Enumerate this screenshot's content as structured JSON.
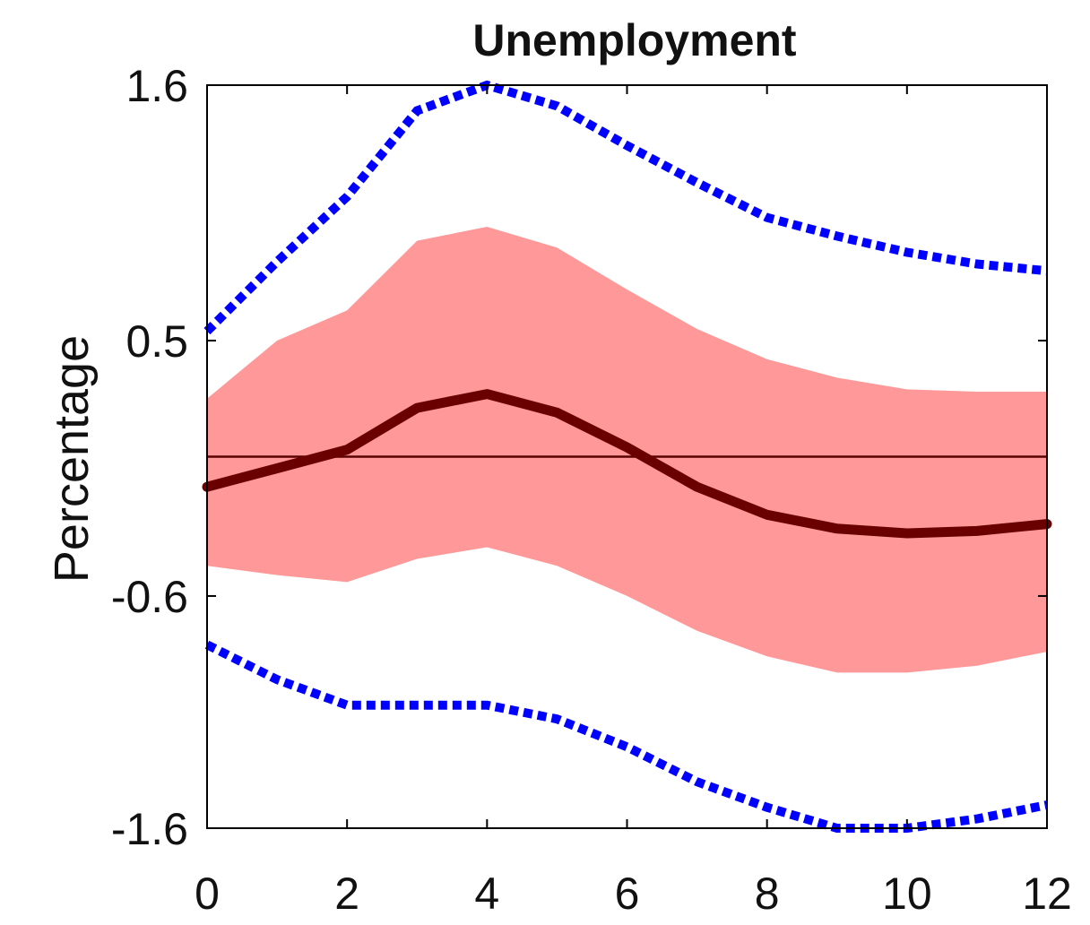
{
  "chart_data": {
    "type": "line",
    "title": "Unemployment",
    "xlabel": "",
    "ylabel": "Percentage",
    "xlim": [
      0,
      12
    ],
    "ylim": [
      -1.6,
      1.6
    ],
    "x_ticks": [
      "0",
      "2",
      "4",
      "6",
      "8",
      "10",
      "12"
    ],
    "y_ticks": [
      "1.6",
      "0.5",
      "-0.6",
      "-1.6"
    ],
    "x": [
      0,
      1,
      2,
      3,
      4,
      5,
      6,
      7,
      8,
      9,
      10,
      11,
      12
    ],
    "series": [
      {
        "role": "median",
        "values": [
          -0.13,
          -0.05,
          0.03,
          0.21,
          0.27,
          0.19,
          0.04,
          -0.13,
          -0.25,
          -0.31,
          -0.33,
          -0.32,
          -0.29
        ]
      },
      {
        "role": "band-upper",
        "values": [
          0.25,
          0.5,
          0.63,
          0.93,
          0.99,
          0.9,
          0.72,
          0.55,
          0.42,
          0.34,
          0.29,
          0.28,
          0.28
        ]
      },
      {
        "role": "band-lower",
        "values": [
          -0.47,
          -0.51,
          -0.54,
          -0.44,
          -0.39,
          -0.47,
          -0.6,
          -0.75,
          -0.86,
          -0.93,
          -0.93,
          -0.9,
          -0.84
        ]
      },
      {
        "role": "outer-upper",
        "values": [
          0.54,
          0.84,
          1.12,
          1.49,
          1.6,
          1.51,
          1.34,
          1.18,
          1.03,
          0.95,
          0.88,
          0.83,
          0.8
        ]
      },
      {
        "role": "outer-lower",
        "values": [
          -0.81,
          -0.96,
          -1.07,
          -1.07,
          -1.07,
          -1.13,
          -1.25,
          -1.4,
          -1.51,
          -1.6,
          -1.6,
          -1.56,
          -1.5
        ]
      }
    ],
    "reference_line_y": 0,
    "colors": {
      "median": "#6a0000",
      "band": "#ff9999",
      "outer": "#0000ff",
      "axis": "#000000",
      "zero_line": "#5a0000"
    },
    "grid": false,
    "legend": "none"
  }
}
